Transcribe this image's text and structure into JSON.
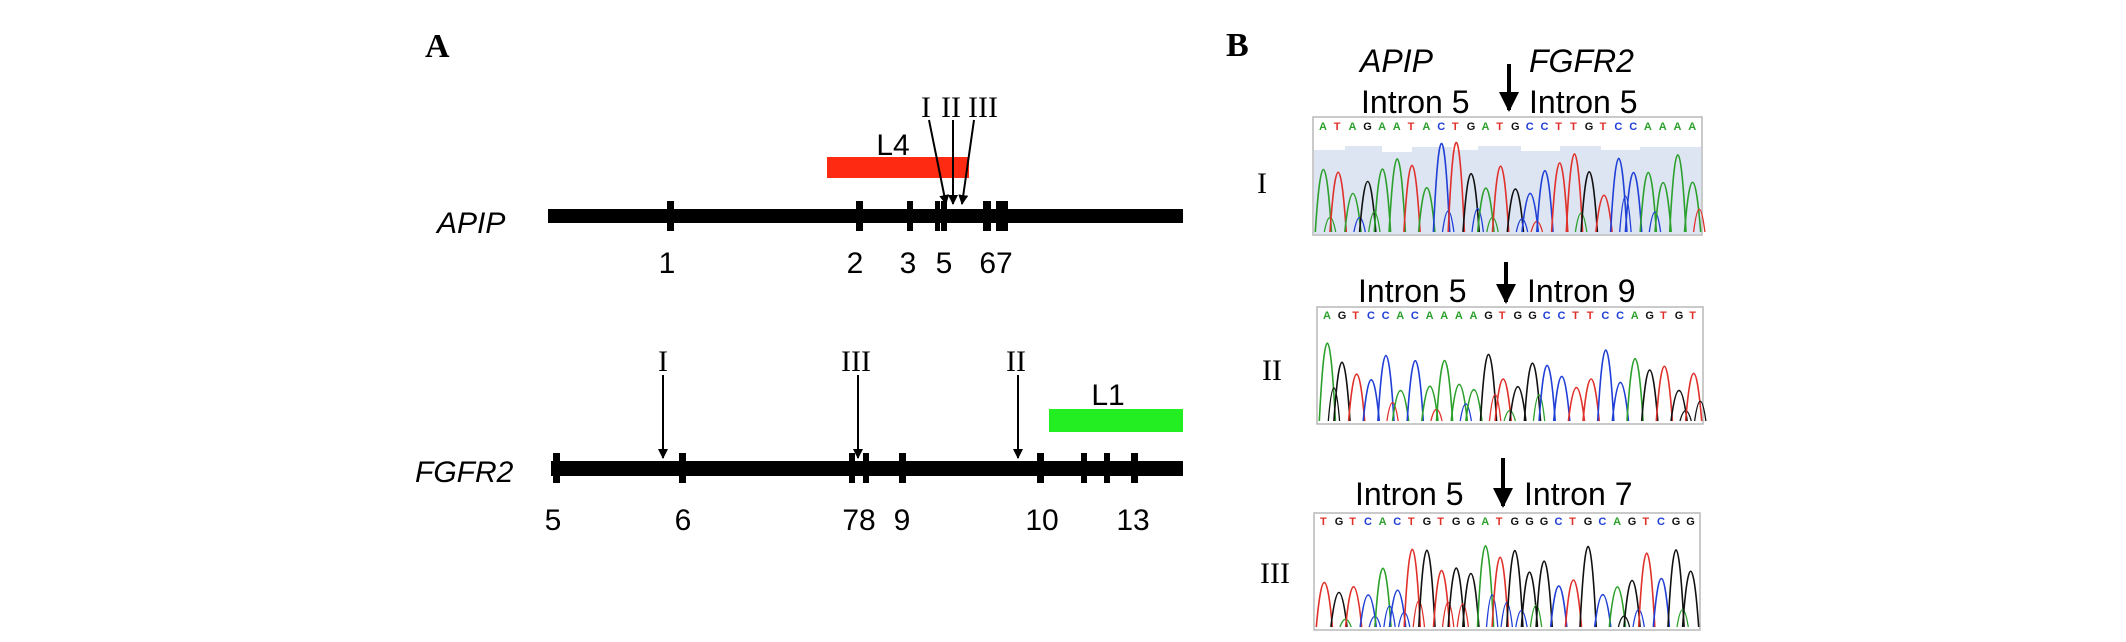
{
  "panel_a": {
    "label": "A",
    "apip": {
      "gene": "APIP",
      "exons": [
        "1",
        "2",
        "3",
        "5",
        "67"
      ],
      "breakpoints": [
        "I",
        "II",
        "III"
      ],
      "lesion": {
        "label": "L4",
        "color": "#ff2a12"
      }
    },
    "fgfr2": {
      "gene": "FGFR2",
      "exons": [
        "5",
        "6",
        "78",
        "9",
        "10",
        "13"
      ],
      "breakpoints": [
        "I",
        "III",
        "II"
      ],
      "lesion": {
        "label": "L1",
        "color": "#22ee22"
      }
    }
  },
  "panel_b": {
    "label": "B",
    "header_gene_left": "APIP",
    "header_gene_right": "FGFR2",
    "traces": [
      {
        "id": "I",
        "left": "Intron 5",
        "right": "Intron 5",
        "sequence": "ATAGAATACTGATGCCTTGTCCAAAA"
      },
      {
        "id": "II",
        "left": "Intron 5",
        "right": "Intron 9",
        "sequence": "AGTCCACAAAAGTGGCCTTCCAGTGT"
      },
      {
        "id": "III",
        "left": "Intron 5",
        "right": "Intron 7",
        "sequence": "TGTCACTGTGGATGGGCTGCAGTCGG"
      }
    ],
    "base_colors": {
      "A": "#2ca02c",
      "C": "#1f3fd6",
      "G": "#111111",
      "T": "#e0302a"
    }
  }
}
